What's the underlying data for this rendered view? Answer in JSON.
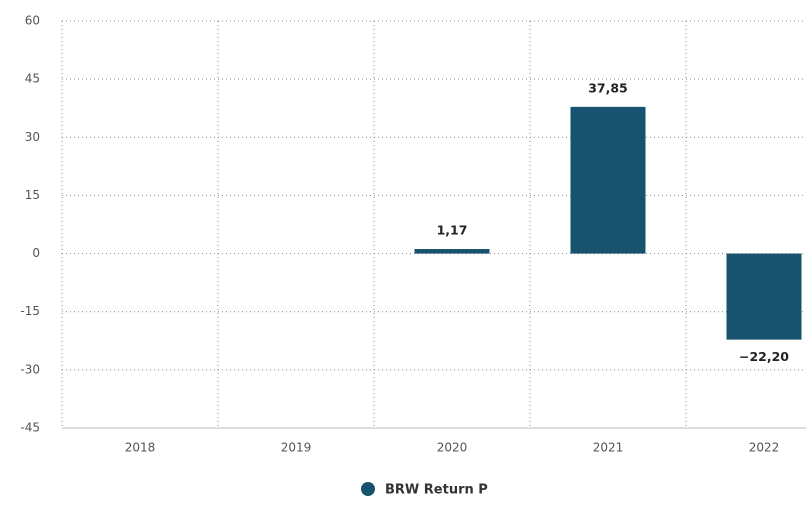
{
  "chart_data": {
    "type": "bar",
    "categories": [
      "2018",
      "2019",
      "2020",
      "2021",
      "2022"
    ],
    "series": [
      {
        "name": "BRW Return P",
        "color": "#17526e",
        "values": [
          null,
          null,
          1.17,
          37.85,
          -22.2
        ],
        "value_labels": [
          null,
          null,
          "1,17",
          "37,85",
          "−22,20"
        ]
      }
    ],
    "ylim": [
      -45,
      60
    ],
    "yticks": [
      -45,
      -30,
      -15,
      0,
      15,
      30,
      45,
      60
    ],
    "grid": true
  }
}
